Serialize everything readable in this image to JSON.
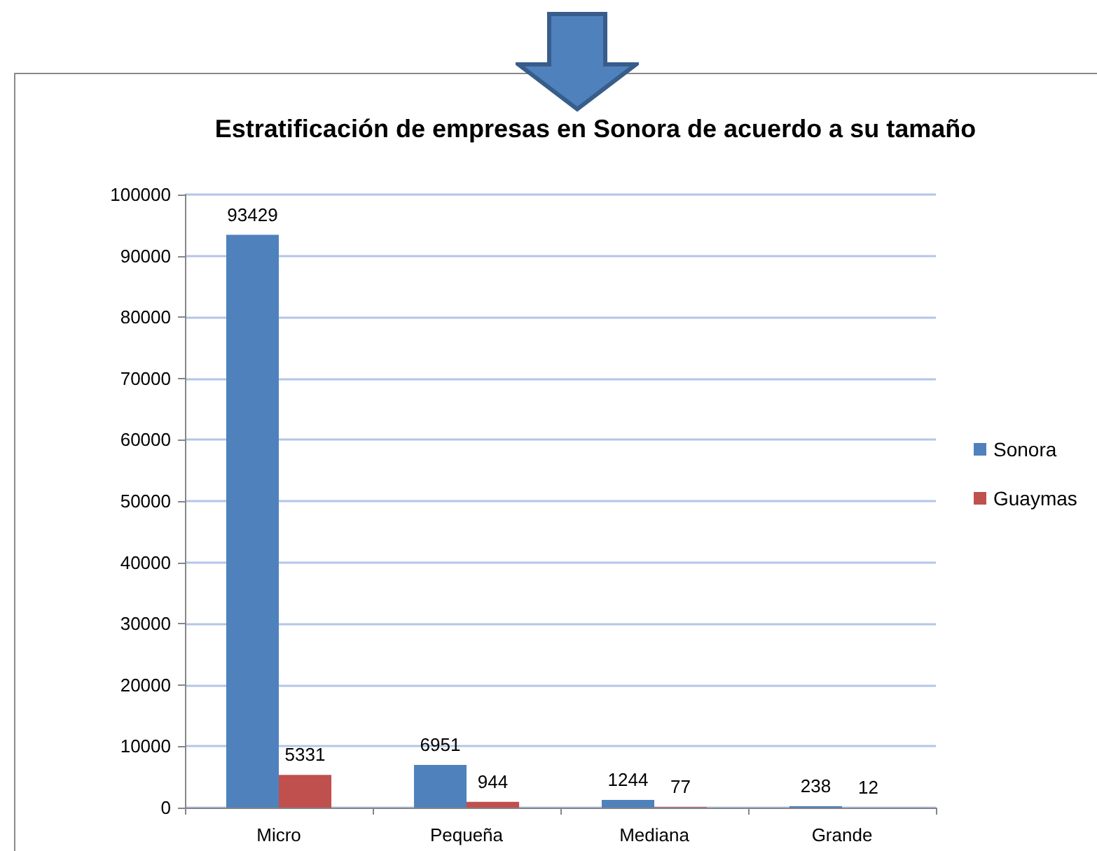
{
  "chart_data": {
    "type": "bar",
    "title": "Estratificación de empresas en Sonora de acuerdo a su tamaño",
    "categories": [
      "Micro",
      "Pequeña",
      "Mediana",
      "Grande"
    ],
    "series": [
      {
        "name": "Sonora",
        "color": "#4f81bd",
        "values": [
          93429,
          6951,
          1244,
          238
        ]
      },
      {
        "name": "Guaymas",
        "color": "#c0504d",
        "values": [
          5331,
          944,
          77,
          12
        ]
      }
    ],
    "ylim": [
      0,
      100000
    ],
    "yticks": [
      0,
      10000,
      20000,
      30000,
      40000,
      50000,
      60000,
      70000,
      80000,
      90000,
      100000
    ],
    "grid": "y",
    "legend": "right",
    "data_labels": true
  }
}
